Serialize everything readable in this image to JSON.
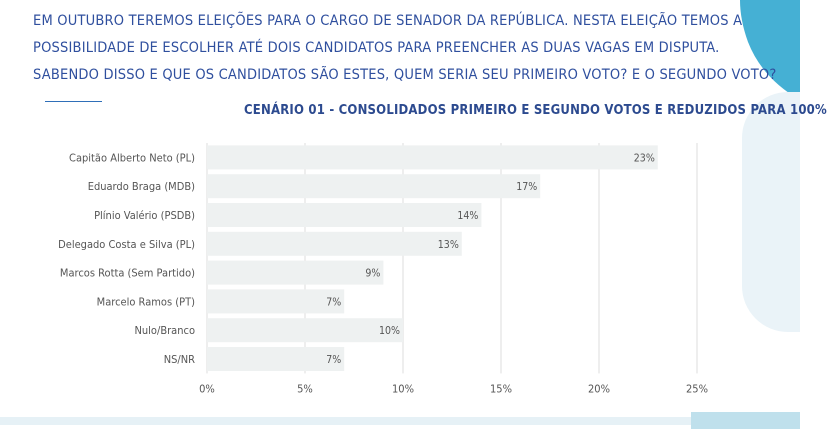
{
  "header": {
    "question_lines": [
      "EM OUTUBRO TEREMOS ELEIÇÕES PARA O CARGO DE SENADOR DA REPÚBLICA. NESTA ELEIÇÃO TEMOS A",
      "POSSIBILIDADE DE ESCOLHER ATÉ DOIS CANDIDATOS PARA PREENCHER AS DUAS VAGAS EM DISPUTA.",
      "SABENDO DISSO E QUE OS CANDIDATOS SÃO ESTES, QUEM SERIA SEU PRIMEIRO VOTO? E O SEGUNDO VOTO?"
    ]
  },
  "colors": {
    "bar": "#eef1f1",
    "grid": "#dcdcdc",
    "text": "#555555",
    "heading": "#2f4f9e",
    "accent": "#4fb3d6"
  },
  "chart_data": {
    "type": "bar",
    "orientation": "horizontal",
    "title": "CENÁRIO 01 - CONSOLIDADOS PRIMEIRO E SEGUNDO VOTOS E REDUZIDOS PARA 100%",
    "categories": [
      "Capitão Alberto Neto (PL)",
      "Eduardo Braga (MDB)",
      "Plínio Valério (PSDB)",
      "Delegado Costa e Silva (PL)",
      "Marcos Rotta (Sem Partido)",
      "Marcelo Ramos (PT)",
      "Nulo/Branco",
      "NS/NR"
    ],
    "values": [
      23,
      17,
      14,
      13,
      9,
      7,
      10,
      7
    ],
    "value_labels": [
      "23%",
      "17%",
      "14%",
      "13%",
      "9%",
      "7%",
      "10%",
      "7%"
    ],
    "xlim": [
      0,
      25
    ],
    "xticks": [
      0,
      5,
      10,
      15,
      20,
      25
    ],
    "xtick_labels": [
      "0%",
      "5%",
      "10%",
      "15%",
      "20%",
      "25%"
    ],
    "grid": true,
    "legend": "none"
  }
}
